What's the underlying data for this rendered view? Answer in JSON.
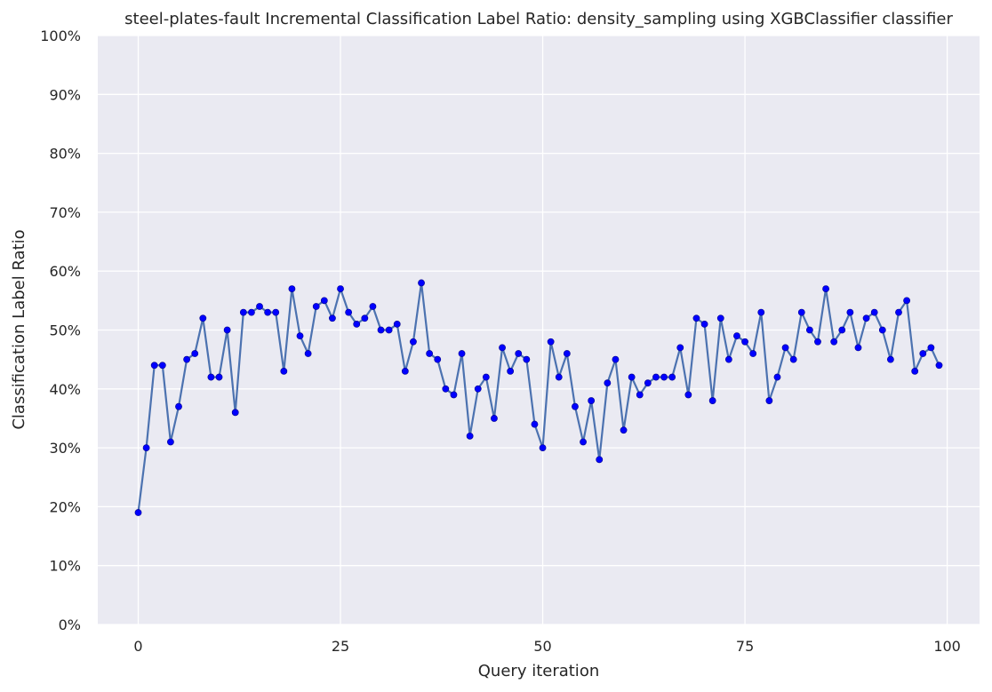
{
  "chart_data": {
    "type": "line",
    "title": "steel-plates-fault Incremental Classification Label Ratio: density_sampling using XGBClassifier classifier",
    "xlabel": "Query iteration",
    "ylabel": "Classification Label Ratio",
    "xlim": [
      -5,
      104
    ],
    "ylim": [
      0,
      100
    ],
    "x_ticks": [
      0,
      25,
      50,
      75,
      100
    ],
    "x_tick_labels": [
      "0",
      "25",
      "50",
      "75",
      "100"
    ],
    "y_ticks": [
      0,
      10,
      20,
      30,
      40,
      50,
      60,
      70,
      80,
      90,
      100
    ],
    "y_tick_labels": [
      "0%",
      "10%",
      "20%",
      "30%",
      "40%",
      "50%",
      "60%",
      "70%",
      "80%",
      "90%",
      "100%"
    ],
    "grid": true,
    "background_color": "#eaeaf2",
    "grid_color": "#ffffff",
    "line_color": "#4c72b0",
    "marker_color": "#0000ff",
    "series": [
      {
        "x": [
          0,
          1,
          2,
          3,
          4,
          5,
          6,
          7,
          8,
          9,
          10,
          11,
          12,
          13,
          14,
          15,
          16,
          17,
          18,
          19,
          20,
          21,
          22,
          23,
          24,
          25,
          26,
          27,
          28,
          29,
          30,
          31,
          32,
          33,
          34,
          35,
          36,
          37,
          38,
          39,
          40,
          41,
          42,
          43,
          44,
          45,
          46,
          47,
          48,
          49,
          50,
          51,
          52,
          53,
          54,
          55,
          56,
          57,
          58,
          59,
          60,
          61,
          62,
          63,
          64,
          65,
          66,
          67,
          68,
          69,
          70,
          71,
          72,
          73,
          74,
          75,
          76,
          77,
          78,
          79,
          80,
          81,
          82,
          83,
          84,
          85,
          86,
          87,
          88,
          89,
          90,
          91,
          92,
          93,
          94,
          95,
          96,
          97,
          98,
          99
        ],
        "values": [
          19,
          30,
          44,
          44,
          31,
          37,
          45,
          46,
          52,
          42,
          42,
          50,
          36,
          53,
          53,
          54,
          53,
          53,
          43,
          57,
          49,
          46,
          54,
          55,
          52,
          57,
          53,
          51,
          52,
          54,
          50,
          50,
          51,
          43,
          48,
          58,
          46,
          45,
          40,
          39,
          46,
          32,
          40,
          42,
          35,
          47,
          43,
          46,
          45,
          34,
          30,
          48,
          42,
          46,
          37,
          31,
          38,
          28,
          41,
          45,
          33,
          42,
          39,
          41,
          42,
          42,
          42,
          47,
          39,
          52,
          51,
          38,
          52,
          45,
          49,
          48,
          46,
          53,
          38,
          42,
          47,
          45,
          53,
          50,
          48,
          57,
          48,
          50,
          53,
          47,
          52,
          53,
          50,
          45,
          53,
          55,
          43,
          46,
          47,
          44
        ]
      }
    ]
  }
}
